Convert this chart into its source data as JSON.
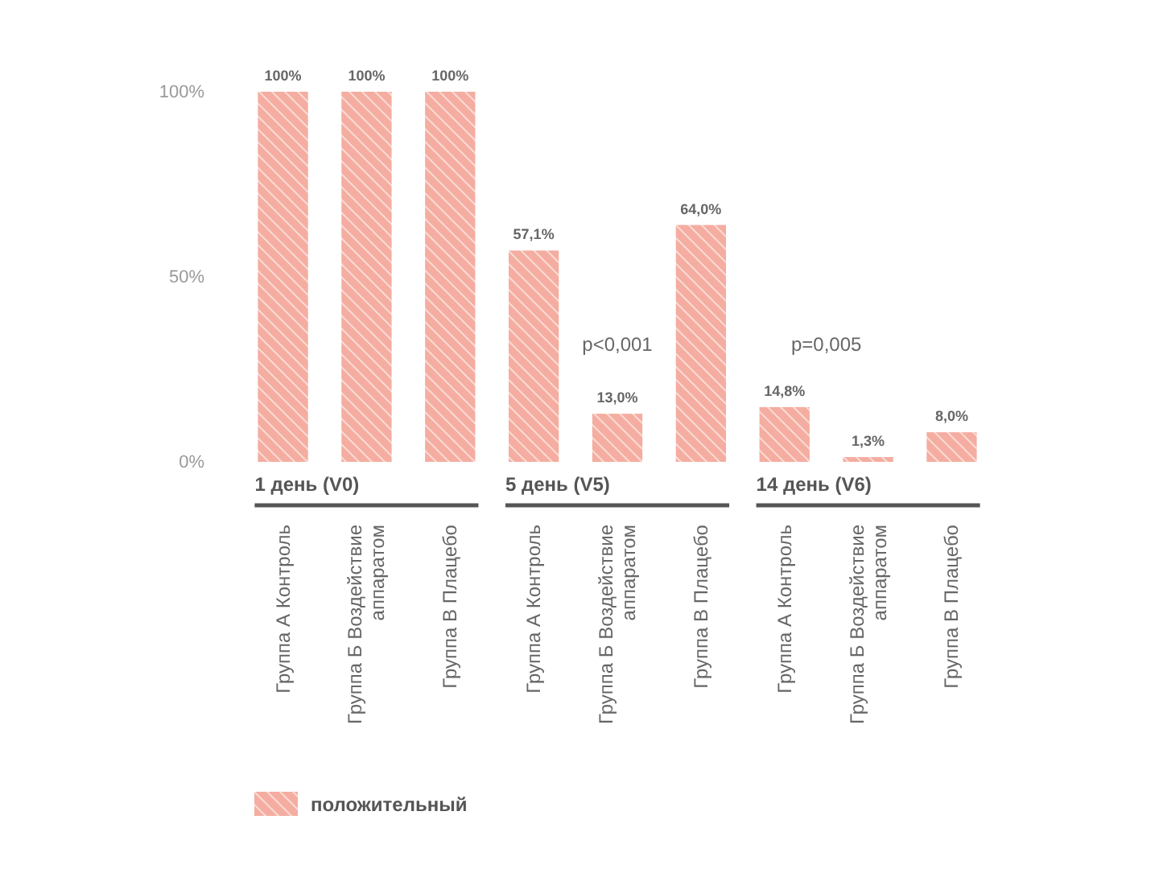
{
  "chart_data": {
    "type": "bar",
    "categories": [
      "Группа А Контроль",
      "Группа Б Воздействие аппаратом",
      "Группа В Плацебо",
      "Группа А Контроль",
      "Группа Б Воздействие аппаратом",
      "Группа В Плацебо",
      "Группа А Контроль",
      "Группа Б Воздействие аппаратом",
      "Группа В Плацебо"
    ],
    "series": [
      {
        "name": "положительный",
        "color": "#f4ada0",
        "values": [
          100,
          100,
          100,
          57.1,
          13,
          64,
          14.8,
          1.3,
          8
        ],
        "value_labels": [
          "100%",
          "100%",
          "100%",
          "57,1%",
          "13,0%",
          "64,0%",
          "14,8%",
          "1,3%",
          "8,0%"
        ]
      }
    ],
    "ylim": [
      0,
      100
    ],
    "yticks": [
      {
        "value": 0,
        "label": "0%"
      },
      {
        "value": 50,
        "label": "50%"
      },
      {
        "value": 100,
        "label": "100%"
      }
    ],
    "annotations": [
      "1 день (V0)",
      "5 день (V5)",
      "14 день (V6)",
      "p<0,001",
      "p=0,005"
    ],
    "legend": "bottom left",
    "grid": false
  }
}
